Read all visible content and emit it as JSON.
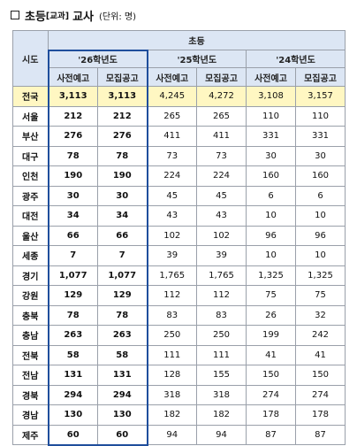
{
  "header": {
    "main_title": "초등",
    "subject_tag": "[교과]",
    "role": "교사",
    "unit": "(단위: 명)"
  },
  "table": {
    "region_header": "시도",
    "group_header": "초등",
    "years": [
      "'26학년도",
      "'25학년도",
      "'24학년도"
    ],
    "sub_headers": [
      "사전예고",
      "모집공고",
      "사전예고",
      "모집공고",
      "사전예고",
      "모집공고"
    ],
    "rows": [
      {
        "region": "전국",
        "values": [
          "3,113",
          "3,113",
          "4,245",
          "4,272",
          "3,108",
          "3,157"
        ]
      },
      {
        "region": "서울",
        "values": [
          "212",
          "212",
          "265",
          "265",
          "110",
          "110"
        ]
      },
      {
        "region": "부산",
        "values": [
          "276",
          "276",
          "411",
          "411",
          "331",
          "331"
        ]
      },
      {
        "region": "대구",
        "values": [
          "78",
          "78",
          "73",
          "73",
          "30",
          "30"
        ]
      },
      {
        "region": "인천",
        "values": [
          "190",
          "190",
          "224",
          "224",
          "160",
          "160"
        ]
      },
      {
        "region": "광주",
        "values": [
          "30",
          "30",
          "45",
          "45",
          "6",
          "6"
        ]
      },
      {
        "region": "대전",
        "values": [
          "34",
          "34",
          "43",
          "43",
          "10",
          "10"
        ]
      },
      {
        "region": "울산",
        "values": [
          "66",
          "66",
          "102",
          "102",
          "96",
          "96"
        ]
      },
      {
        "region": "세종",
        "values": [
          "7",
          "7",
          "39",
          "39",
          "10",
          "10"
        ]
      },
      {
        "region": "경기",
        "values": [
          "1,077",
          "1,077",
          "1,765",
          "1,765",
          "1,325",
          "1,325"
        ]
      },
      {
        "region": "강원",
        "values": [
          "129",
          "129",
          "112",
          "112",
          "75",
          "75"
        ]
      },
      {
        "region": "충북",
        "values": [
          "78",
          "78",
          "83",
          "83",
          "26",
          "32"
        ]
      },
      {
        "region": "충남",
        "values": [
          "263",
          "263",
          "250",
          "250",
          "199",
          "242"
        ]
      },
      {
        "region": "전북",
        "values": [
          "58",
          "58",
          "111",
          "111",
          "41",
          "41"
        ]
      },
      {
        "region": "전남",
        "values": [
          "131",
          "131",
          "128",
          "155",
          "150",
          "150"
        ]
      },
      {
        "region": "경북",
        "values": [
          "294",
          "294",
          "318",
          "318",
          "274",
          "274"
        ]
      },
      {
        "region": "경남",
        "values": [
          "130",
          "130",
          "182",
          "182",
          "178",
          "178"
        ]
      },
      {
        "region": "제주",
        "values": [
          "60",
          "60",
          "94",
          "94",
          "87",
          "87"
        ]
      }
    ]
  }
}
